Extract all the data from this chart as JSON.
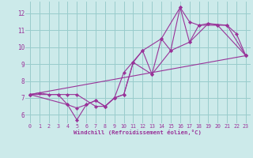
{
  "background_color": "#cceaea",
  "grid_color": "#99cccc",
  "line_color": "#993399",
  "marker_color": "#993399",
  "xlabel": "Windchill (Refroidissement éolien,°C)",
  "xlim": [
    -0.5,
    23.5
  ],
  "ylim": [
    5.5,
    12.7
  ],
  "yticks": [
    6,
    7,
    8,
    9,
    10,
    11,
    12
  ],
  "xticks": [
    0,
    1,
    2,
    3,
    4,
    5,
    6,
    7,
    8,
    9,
    10,
    11,
    12,
    13,
    14,
    15,
    16,
    17,
    18,
    19,
    20,
    21,
    22,
    23
  ],
  "line1": [
    [
      0,
      7.2
    ],
    [
      1,
      7.3
    ],
    [
      2,
      7.2
    ],
    [
      3,
      7.2
    ],
    [
      4,
      6.6
    ],
    [
      5,
      5.7
    ],
    [
      6,
      6.6
    ],
    [
      7,
      6.85
    ],
    [
      8,
      6.5
    ],
    [
      9,
      7.0
    ],
    [
      10,
      7.2
    ],
    [
      11,
      9.1
    ],
    [
      12,
      9.8
    ],
    [
      13,
      8.4
    ],
    [
      14,
      10.5
    ],
    [
      15,
      9.8
    ],
    [
      16,
      12.35
    ],
    [
      17,
      10.3
    ],
    [
      18,
      11.3
    ],
    [
      19,
      11.4
    ],
    [
      20,
      11.3
    ],
    [
      21,
      11.3
    ],
    [
      22,
      10.8
    ],
    [
      23,
      9.5
    ]
  ],
  "line2": [
    [
      0,
      7.2
    ],
    [
      3,
      7.2
    ],
    [
      4,
      7.2
    ],
    [
      5,
      7.2
    ],
    [
      7,
      6.5
    ],
    [
      8,
      6.5
    ],
    [
      9,
      7.0
    ],
    [
      10,
      8.5
    ],
    [
      12,
      9.8
    ],
    [
      14,
      10.5
    ],
    [
      16,
      12.35
    ],
    [
      17,
      11.5
    ],
    [
      18,
      11.3
    ],
    [
      20,
      11.3
    ],
    [
      23,
      9.5
    ]
  ],
  "line3": [
    [
      0,
      7.2
    ],
    [
      4,
      6.6
    ],
    [
      5,
      6.4
    ],
    [
      6,
      6.6
    ],
    [
      7,
      6.85
    ],
    [
      8,
      6.5
    ],
    [
      9,
      7.0
    ],
    [
      10,
      7.2
    ],
    [
      11,
      9.1
    ],
    [
      13,
      8.4
    ],
    [
      15,
      9.8
    ],
    [
      17,
      10.3
    ],
    [
      19,
      11.4
    ],
    [
      21,
      11.3
    ],
    [
      23,
      9.5
    ]
  ],
  "line4": [
    [
      0,
      7.2
    ],
    [
      23,
      9.5
    ]
  ]
}
